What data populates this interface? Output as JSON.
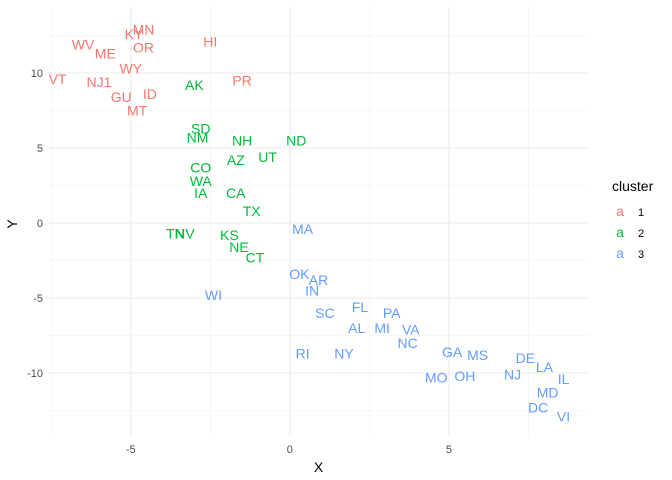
{
  "chart_data": {
    "type": "scatter",
    "title": "",
    "xlabel": "X",
    "ylabel": "Y",
    "xlim": [
      -7.6,
      9.4
    ],
    "ylim": [
      -14.2,
      14.4
    ],
    "x_ticks": [
      -5,
      0,
      5
    ],
    "y_ticks": [
      10,
      5,
      0,
      -5,
      -10
    ],
    "grid": true,
    "legend": {
      "title": "cluster",
      "placement": "right",
      "glyph": "a",
      "entries": [
        {
          "name": "1",
          "color": "#F8766D"
        },
        {
          "name": "2",
          "color": "#00BA38"
        },
        {
          "name": "3",
          "color": "#619CFF"
        }
      ]
    },
    "series": [
      {
        "name": "1",
        "color": "#F8766D",
        "points": [
          {
            "label": "MN",
            "x": -4.6,
            "y": 12.9
          },
          {
            "label": "KY",
            "x": -4.9,
            "y": 12.6
          },
          {
            "label": "HI",
            "x": -2.5,
            "y": 12.1
          },
          {
            "label": "WV",
            "x": -6.5,
            "y": 11.9
          },
          {
            "label": "OR",
            "x": -4.6,
            "y": 11.7
          },
          {
            "label": "ME",
            "x": -5.8,
            "y": 11.3
          },
          {
            "label": "WY",
            "x": -5.0,
            "y": 10.3
          },
          {
            "label": "VT",
            "x": -7.3,
            "y": 9.6
          },
          {
            "label": "NJ1",
            "x": -6.0,
            "y": 9.4
          },
          {
            "label": "PR",
            "x": -1.5,
            "y": 9.5
          },
          {
            "label": "GU",
            "x": -5.3,
            "y": 8.4
          },
          {
            "label": "ID",
            "x": -4.4,
            "y": 8.6
          },
          {
            "label": "MT",
            "x": -4.8,
            "y": 7.5
          }
        ]
      },
      {
        "name": "2",
        "color": "#00BA38",
        "points": [
          {
            "label": "AK",
            "x": -3.0,
            "y": 9.2
          },
          {
            "label": "SD",
            "x": -2.8,
            "y": 6.3
          },
          {
            "label": "NM",
            "x": -2.9,
            "y": 5.7
          },
          {
            "label": "NH",
            "x": -1.5,
            "y": 5.5
          },
          {
            "label": "ND",
            "x": 0.2,
            "y": 5.5
          },
          {
            "label": "UT",
            "x": -0.7,
            "y": 4.4
          },
          {
            "label": "AZ",
            "x": -1.7,
            "y": 4.2
          },
          {
            "label": "CO",
            "x": -2.8,
            "y": 3.7
          },
          {
            "label": "WA",
            "x": -2.8,
            "y": 2.8
          },
          {
            "label": "IA",
            "x": -2.8,
            "y": 2.0
          },
          {
            "label": "CA",
            "x": -1.7,
            "y": 2.0
          },
          {
            "label": "TX",
            "x": -1.2,
            "y": 0.8
          },
          {
            "label": "TN",
            "x": -3.6,
            "y": -0.7
          },
          {
            "label": "NV",
            "x": -3.3,
            "y": -0.7
          },
          {
            "label": "KS",
            "x": -1.9,
            "y": -0.8
          },
          {
            "label": "NE",
            "x": -1.6,
            "y": -1.6
          },
          {
            "label": "CT",
            "x": -1.1,
            "y": -2.3
          }
        ]
      },
      {
        "name": "3",
        "color": "#619CFF",
        "points": [
          {
            "label": "MA",
            "x": 0.4,
            "y": -0.4
          },
          {
            "label": "OK",
            "x": 0.3,
            "y": -3.4
          },
          {
            "label": "AR",
            "x": 0.9,
            "y": -3.8
          },
          {
            "label": "IN",
            "x": 0.7,
            "y": -4.5
          },
          {
            "label": "WI",
            "x": -2.4,
            "y": -4.8
          },
          {
            "label": "FL",
            "x": 2.2,
            "y": -5.6
          },
          {
            "label": "SC",
            "x": 1.1,
            "y": -6.0
          },
          {
            "label": "PA",
            "x": 3.2,
            "y": -6.0
          },
          {
            "label": "AL",
            "x": 2.1,
            "y": -7.0
          },
          {
            "label": "MI",
            "x": 2.9,
            "y": -7.0
          },
          {
            "label": "VA",
            "x": 3.8,
            "y": -7.1
          },
          {
            "label": "NC",
            "x": 3.7,
            "y": -8.0
          },
          {
            "label": "RI",
            "x": 0.4,
            "y": -8.7
          },
          {
            "label": "NY",
            "x": 1.7,
            "y": -8.7
          },
          {
            "label": "GA",
            "x": 5.1,
            "y": -8.6
          },
          {
            "label": "MS",
            "x": 5.9,
            "y": -8.8
          },
          {
            "label": "DE",
            "x": 7.4,
            "y": -9.0
          },
          {
            "label": "LA",
            "x": 8.0,
            "y": -9.6
          },
          {
            "label": "MO",
            "x": 4.6,
            "y": -10.3
          },
          {
            "label": "OH",
            "x": 5.5,
            "y": -10.2
          },
          {
            "label": "NJ",
            "x": 7.0,
            "y": -10.1
          },
          {
            "label": "IL",
            "x": 8.6,
            "y": -10.4
          },
          {
            "label": "MD",
            "x": 8.1,
            "y": -11.3
          },
          {
            "label": "DC",
            "x": 7.8,
            "y": -12.3
          },
          {
            "label": "VI",
            "x": 8.6,
            "y": -12.9
          }
        ]
      }
    ]
  }
}
